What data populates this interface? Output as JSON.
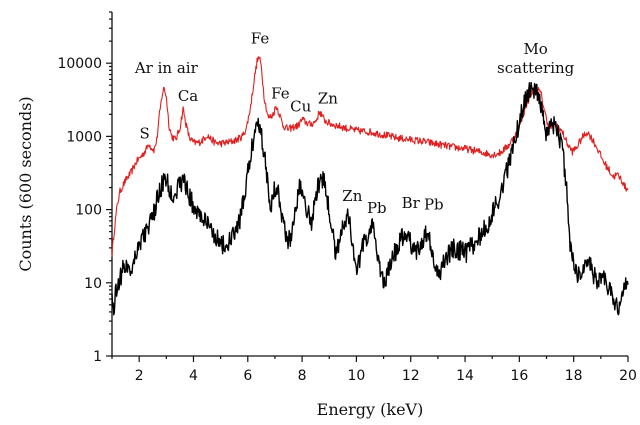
{
  "chart_data": {
    "type": "line",
    "title": "",
    "xlabel": "Energy (keV)",
    "ylabel": "Counts (600 seconds)",
    "xlim": [
      1,
      20
    ],
    "ylim": [
      1,
      50000
    ],
    "yscale": "log",
    "grid": false,
    "x_ticks": [
      2,
      4,
      6,
      8,
      10,
      12,
      14,
      16,
      18,
      20
    ],
    "y_ticks": [
      {
        "value": 1,
        "label": "1"
      },
      {
        "value": 10,
        "label": "10"
      },
      {
        "value": 100,
        "label": "100"
      },
      {
        "value": 1000,
        "label": "1000"
      },
      {
        "value": 10000,
        "label": "10000"
      }
    ],
    "series": [
      {
        "color": "#e02020",
        "points": [
          [
            1.0,
            25
          ],
          [
            1.1,
            60
          ],
          [
            1.2,
            120
          ],
          [
            1.3,
            180
          ],
          [
            1.5,
            250
          ],
          [
            1.7,
            320
          ],
          [
            1.9,
            450
          ],
          [
            2.1,
            550
          ],
          [
            2.25,
            650
          ],
          [
            2.35,
            800
          ],
          [
            2.45,
            700
          ],
          [
            2.55,
            650
          ],
          [
            2.65,
            900
          ],
          [
            2.75,
            2000
          ],
          [
            2.85,
            3800
          ],
          [
            2.92,
            4600
          ],
          [
            3.0,
            3500
          ],
          [
            3.1,
            1400
          ],
          [
            3.2,
            1000
          ],
          [
            3.35,
            900
          ],
          [
            3.5,
            1300
          ],
          [
            3.62,
            2400
          ],
          [
            3.72,
            1500
          ],
          [
            3.85,
            950
          ],
          [
            4.0,
            820
          ],
          [
            4.2,
            820
          ],
          [
            4.35,
            900
          ],
          [
            4.5,
            1050
          ],
          [
            4.6,
            950
          ],
          [
            4.8,
            820
          ],
          [
            5.0,
            800
          ],
          [
            5.2,
            820
          ],
          [
            5.4,
            850
          ],
          [
            5.6,
            900
          ],
          [
            5.8,
            1000
          ],
          [
            5.95,
            1300
          ],
          [
            6.1,
            2500
          ],
          [
            6.25,
            6500
          ],
          [
            6.35,
            11000
          ],
          [
            6.42,
            12000
          ],
          [
            6.5,
            9000
          ],
          [
            6.6,
            3500
          ],
          [
            6.75,
            1800
          ],
          [
            6.9,
            1900
          ],
          [
            7.05,
            2600
          ],
          [
            7.15,
            2100
          ],
          [
            7.3,
            1400
          ],
          [
            7.5,
            1250
          ],
          [
            7.7,
            1350
          ],
          [
            7.85,
            1400
          ],
          [
            8.0,
            1700
          ],
          [
            8.15,
            1550
          ],
          [
            8.3,
            1450
          ],
          [
            8.5,
            1600
          ],
          [
            8.65,
            2200
          ],
          [
            8.8,
            1700
          ],
          [
            9.0,
            1500
          ],
          [
            9.3,
            1400
          ],
          [
            9.6,
            1300
          ],
          [
            10.0,
            1200
          ],
          [
            10.5,
            1150
          ],
          [
            11.0,
            1050
          ],
          [
            11.5,
            950
          ],
          [
            12.0,
            900
          ],
          [
            12.5,
            850
          ],
          [
            13.0,
            780
          ],
          [
            13.5,
            720
          ],
          [
            14.0,
            680
          ],
          [
            14.5,
            620
          ],
          [
            15.0,
            560
          ],
          [
            15.3,
            600
          ],
          [
            15.6,
            750
          ],
          [
            15.9,
            1100
          ],
          [
            16.1,
            1800
          ],
          [
            16.3,
            3000
          ],
          [
            16.5,
            4200
          ],
          [
            16.65,
            4500
          ],
          [
            16.8,
            3800
          ],
          [
            16.95,
            2000
          ],
          [
            17.1,
            1300
          ],
          [
            17.3,
            1450
          ],
          [
            17.45,
            1350
          ],
          [
            17.6,
            1100
          ],
          [
            17.8,
            750
          ],
          [
            17.95,
            620
          ],
          [
            18.1,
            700
          ],
          [
            18.3,
            950
          ],
          [
            18.5,
            1150
          ],
          [
            18.7,
            900
          ],
          [
            18.9,
            650
          ],
          [
            19.1,
            450
          ],
          [
            19.3,
            350
          ],
          [
            19.45,
            280
          ],
          [
            19.6,
            300
          ],
          [
            19.75,
            260
          ],
          [
            19.9,
            200
          ],
          [
            20.0,
            190
          ]
        ]
      },
      {
        "color": "#000000",
        "points": [
          [
            1.0,
            7
          ],
          [
            1.05,
            4
          ],
          [
            1.15,
            8
          ],
          [
            1.3,
            12
          ],
          [
            1.5,
            18
          ],
          [
            1.7,
            15
          ],
          [
            1.9,
            28
          ],
          [
            2.1,
            40
          ],
          [
            2.3,
            55
          ],
          [
            2.5,
            75
          ],
          [
            2.65,
            130
          ],
          [
            2.8,
            200
          ],
          [
            2.92,
            260
          ],
          [
            3.05,
            220
          ],
          [
            3.2,
            160
          ],
          [
            3.35,
            180
          ],
          [
            3.5,
            220
          ],
          [
            3.65,
            260
          ],
          [
            3.8,
            170
          ],
          [
            4.0,
            110
          ],
          [
            4.2,
            90
          ],
          [
            4.4,
            70
          ],
          [
            4.6,
            55
          ],
          [
            4.8,
            45
          ],
          [
            5.0,
            35
          ],
          [
            5.2,
            30
          ],
          [
            5.4,
            40
          ],
          [
            5.6,
            55
          ],
          [
            5.75,
            80
          ],
          [
            5.9,
            180
          ],
          [
            6.05,
            400
          ],
          [
            6.2,
            900
          ],
          [
            6.35,
            1600
          ],
          [
            6.45,
            1500
          ],
          [
            6.6,
            600
          ],
          [
            6.75,
            220
          ],
          [
            6.85,
            100
          ],
          [
            6.95,
            180
          ],
          [
            7.05,
            220
          ],
          [
            7.15,
            160
          ],
          [
            7.3,
            70
          ],
          [
            7.45,
            35
          ],
          [
            7.6,
            45
          ],
          [
            7.75,
            110
          ],
          [
            7.95,
            220
          ],
          [
            8.05,
            190
          ],
          [
            8.2,
            90
          ],
          [
            8.35,
            70
          ],
          [
            8.5,
            150
          ],
          [
            8.65,
            260
          ],
          [
            8.8,
            240
          ],
          [
            8.95,
            130
          ],
          [
            9.1,
            50
          ],
          [
            9.25,
            25
          ],
          [
            9.4,
            45
          ],
          [
            9.55,
            70
          ],
          [
            9.7,
            80
          ],
          [
            9.85,
            40
          ],
          [
            10.0,
            12
          ],
          [
            10.15,
            25
          ],
          [
            10.3,
            35
          ],
          [
            10.45,
            50
          ],
          [
            10.6,
            55
          ],
          [
            10.75,
            30
          ],
          [
            10.9,
            14
          ],
          [
            11.05,
            10
          ],
          [
            11.2,
            15
          ],
          [
            11.4,
            25
          ],
          [
            11.6,
            35
          ],
          [
            11.75,
            45
          ],
          [
            11.9,
            50
          ],
          [
            12.0,
            35
          ],
          [
            12.15,
            25
          ],
          [
            12.3,
            30
          ],
          [
            12.45,
            40
          ],
          [
            12.6,
            50
          ],
          [
            12.75,
            30
          ],
          [
            12.9,
            15
          ],
          [
            13.05,
            12
          ],
          [
            13.2,
            20
          ],
          [
            13.4,
            25
          ],
          [
            13.6,
            30
          ],
          [
            13.8,
            28
          ],
          [
            14.0,
            25
          ],
          [
            14.2,
            30
          ],
          [
            14.4,
            38
          ],
          [
            14.6,
            45
          ],
          [
            14.8,
            60
          ],
          [
            15.0,
            85
          ],
          [
            15.2,
            130
          ],
          [
            15.4,
            220
          ],
          [
            15.6,
            400
          ],
          [
            15.8,
            800
          ],
          [
            16.0,
            1600
          ],
          [
            16.2,
            3000
          ],
          [
            16.4,
            4300
          ],
          [
            16.55,
            4600
          ],
          [
            16.7,
            3800
          ],
          [
            16.85,
            1800
          ],
          [
            17.0,
            1000
          ],
          [
            17.15,
            1250
          ],
          [
            17.3,
            1400
          ],
          [
            17.45,
            1100
          ],
          [
            17.6,
            600
          ],
          [
            17.75,
            180
          ],
          [
            17.85,
            40
          ],
          [
            18.0,
            18
          ],
          [
            18.15,
            12
          ],
          [
            18.3,
            15
          ],
          [
            18.5,
            20
          ],
          [
            18.7,
            14
          ],
          [
            18.9,
            10
          ],
          [
            19.1,
            12
          ],
          [
            19.3,
            8
          ],
          [
            19.5,
            6
          ],
          [
            19.65,
            4
          ],
          [
            19.8,
            8
          ],
          [
            19.9,
            10
          ],
          [
            20.0,
            9
          ]
        ]
      }
    ],
    "annotations": [
      {
        "text": "Ar in air",
        "x": 3.0,
        "y": 7300
      },
      {
        "text": "Ca",
        "x": 3.8,
        "y": 3050
      },
      {
        "text": "S",
        "x": 2.2,
        "y": 930
      },
      {
        "text": "Fe",
        "x": 6.45,
        "y": 18500
      },
      {
        "text": "Fe",
        "x": 7.2,
        "y": 3300
      },
      {
        "text": "Cu",
        "x": 7.95,
        "y": 2200
      },
      {
        "text": "Zn",
        "x": 8.95,
        "y": 2800
      },
      {
        "text": "Zn",
        "x": 9.85,
        "y": 130
      },
      {
        "text": "Pb",
        "x": 10.75,
        "y": 90
      },
      {
        "text": "Br",
        "x": 12.0,
        "y": 105
      },
      {
        "text": "Pb",
        "x": 12.85,
        "y": 100
      },
      {
        "text": "Mo",
        "x": 16.6,
        "y": 13300
      },
      {
        "text": "scattering",
        "x": 16.6,
        "y": 7300
      }
    ]
  }
}
